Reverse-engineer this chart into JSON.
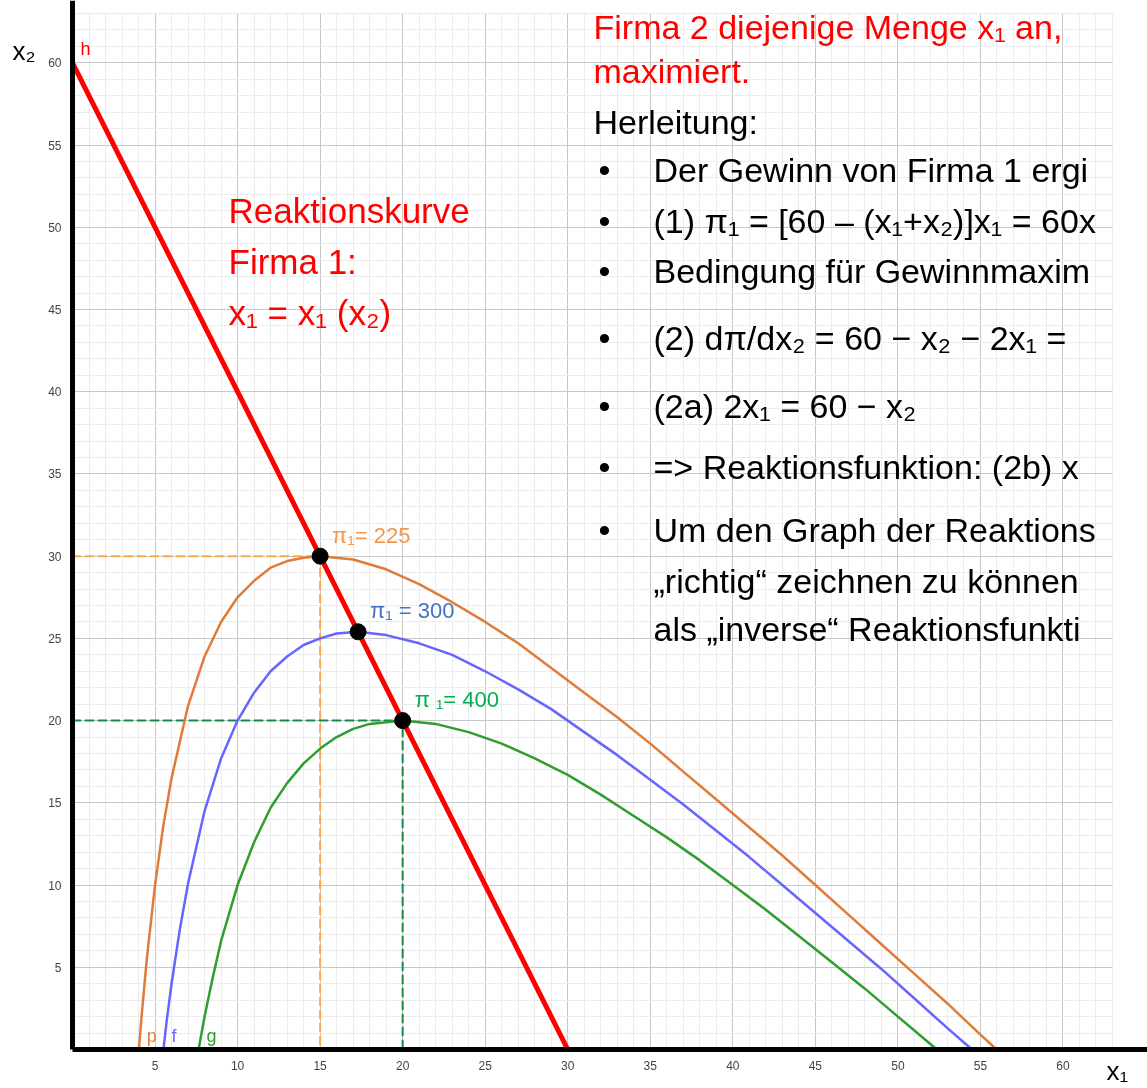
{
  "chart_data": {
    "type": "line",
    "xlabel": "x₁",
    "ylabel": "x₂",
    "xlim": [
      0,
      63
    ],
    "ylim": [
      0,
      63
    ],
    "xticks": [
      5,
      10,
      15,
      20,
      25,
      30,
      35,
      40,
      45,
      50,
      55,
      60
    ],
    "yticks": [
      5,
      10,
      15,
      20,
      25,
      30,
      35,
      40,
      45,
      50,
      55,
      60
    ],
    "grid": true,
    "series": [
      {
        "color": "#ffa64d",
        "line_style": "dashed",
        "x": [
          0,
          15,
          15
        ],
        "values": [
          30,
          30,
          0
        ]
      },
      {
        "color": "#16894a",
        "line_style": "dashed",
        "x": [
          0,
          20,
          20
        ],
        "values": [
          20,
          20,
          0
        ]
      },
      {
        "name": "p",
        "color": "#e07b39",
        "x": [
          4.02,
          4.2,
          4.5,
          5,
          5.5,
          6,
          7,
          8,
          9,
          10,
          11,
          12,
          13,
          14,
          15,
          17,
          19,
          21,
          23,
          25,
          27,
          29,
          31,
          33,
          35,
          37,
          39,
          41,
          43,
          45,
          47,
          49,
          51,
          53,
          55,
          55.98
        ],
        "values": [
          0,
          2.2,
          5.5,
          10,
          13.6,
          16.5,
          20.9,
          23.9,
          26,
          27.5,
          28.5,
          29.3,
          29.7,
          29.9,
          30,
          29.8,
          29.2,
          28.3,
          27.2,
          26,
          24.7,
          23.2,
          21.7,
          20.2,
          18.6,
          16.9,
          15.2,
          13.5,
          11.8,
          10,
          8.2,
          6.4,
          4.6,
          2.8,
          0.9,
          0
        ]
      },
      {
        "name": "f",
        "color": "#6666ff",
        "x": [
          5.51,
          5.7,
          6,
          6.5,
          7,
          8,
          9,
          10,
          11,
          12,
          13,
          14,
          15,
          16,
          17.3,
          19,
          21,
          23,
          25,
          27,
          29,
          31,
          33,
          35,
          37,
          39,
          41,
          43,
          45,
          47,
          49,
          51,
          53,
          54.49
        ],
        "values": [
          0,
          1.7,
          4,
          7.3,
          10.1,
          14.5,
          17.7,
          20,
          21.7,
          23,
          23.9,
          24.6,
          25,
          25.3,
          25.4,
          25.2,
          24.7,
          24,
          23,
          21.9,
          20.7,
          19.3,
          17.9,
          16.4,
          14.9,
          13.3,
          11.7,
          10,
          8.3,
          6.6,
          4.9,
          3.1,
          1.3,
          0
        ]
      },
      {
        "name": "g",
        "color": "#2e9e2e",
        "x": [
          7.64,
          7.8,
          8,
          8.5,
          9,
          10,
          11,
          12,
          13,
          14,
          15,
          16,
          17,
          18,
          20,
          22,
          24,
          26,
          28,
          30,
          32,
          34,
          36,
          38,
          40,
          42,
          44,
          46,
          48,
          50,
          52,
          52.36
        ],
        "values": [
          0,
          0.9,
          2,
          4.4,
          6.6,
          10,
          12.6,
          14.7,
          16.2,
          17.4,
          18.3,
          19,
          19.5,
          19.8,
          20,
          19.8,
          19.3,
          18.6,
          17.7,
          16.7,
          15.5,
          14.2,
          12.9,
          11.5,
          10,
          8.5,
          6.9,
          5.3,
          3.7,
          2,
          0.3,
          0
        ]
      },
      {
        "name": "h",
        "color": "#ff0000",
        "x": [
          0,
          30
        ],
        "values": [
          60,
          0
        ]
      },
      {
        "type": "scatter",
        "marker": "circle",
        "color": "#000000",
        "x": [
          15,
          17.3,
          20
        ],
        "values": [
          30,
          25.4,
          20
        ]
      }
    ],
    "annotations": [
      "Firma 2 diejenige Menge x₁ an,",
      "maximiert.",
      "Herleitung:",
      "• Der Gewinn von Firma 1 ergi",
      "• (1) π₁ = [60 – (x₁+x₂)]x₁ = 60x",
      "• Bedingung für Gewinnmaxim",
      "• (2) dπ/dx₂ = 60 − x₂ − 2x₁ =",
      "• (2a) 2x₁ = 60 − x₂",
      "• => Reaktionsfunktion: (2b) x",
      "• Um den Graph der Reaktions",
      "„richtig“ zeichnen zu können",
      "als „inverse“ Reaktionsfunkti",
      "Reaktionskurve",
      "Firma 1:",
      "x₁ = x₁ (x₂)",
      {
        "text": "π₁= 225",
        "x": 15,
        "y": 30
      },
      {
        "text": "π₁ = 300",
        "x": 17.3,
        "y": 25.4
      },
      {
        "text": "π ₁= 400",
        "x": 20,
        "y": 20
      }
    ]
  }
}
